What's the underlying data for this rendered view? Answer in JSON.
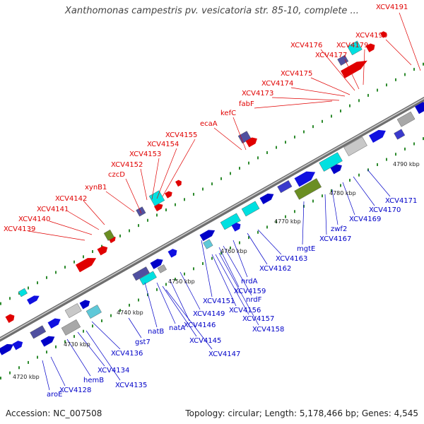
{
  "title": "Xanthomonas campestris pv. vesicatoria str. 85-10, complete ...",
  "footer": {
    "accession": "Accession: NC_007508",
    "topology": "Topology: circular; Length: 5,178,466 bp; Genes: 4,545"
  },
  "colors": {
    "top_label": "#e00000",
    "bottom_label": "#0000c8",
    "backbone": "#8a8a8a",
    "tick": "#2e8b2e"
  },
  "kbp_ticks": [
    "4720 kbp",
    "4730 kbp",
    "4740 kbp",
    "4750 kbp",
    "4760 kbp",
    "4770 kbp",
    "4780 kbp",
    "4790 kbp"
  ],
  "top_genes": [
    "XCV4139",
    "XCV4140",
    "XCV4141",
    "XCV4142",
    "xynB1",
    "czcD",
    "XCV4152",
    "XCV4153",
    "XCV4154",
    "XCV4155",
    "ecaA",
    "kefC",
    "fabF",
    "XCV4173",
    "XCV4174",
    "XCV4175",
    "XCV4176",
    "XCV4177",
    "XCV4179",
    "XCV4190",
    "XCV4191"
  ],
  "bottom_genes": [
    "aroE",
    "XCV4128",
    "hemB",
    "XCV4134",
    "XCV4135",
    "XCV4136",
    "gst7",
    "natB",
    "natA",
    "XCV4145",
    "XCV4146",
    "XCV4147",
    "XCV4149",
    "XCV4151",
    "XCV4156",
    "XCV4157",
    "XCV4158",
    "XCV4159",
    "nrdF",
    "nrdA",
    "XCV4162",
    "XCV4163",
    "mgtE",
    "XCV4167",
    "zwf2",
    "XCV4169",
    "XCV4170",
    "XCV4171"
  ]
}
